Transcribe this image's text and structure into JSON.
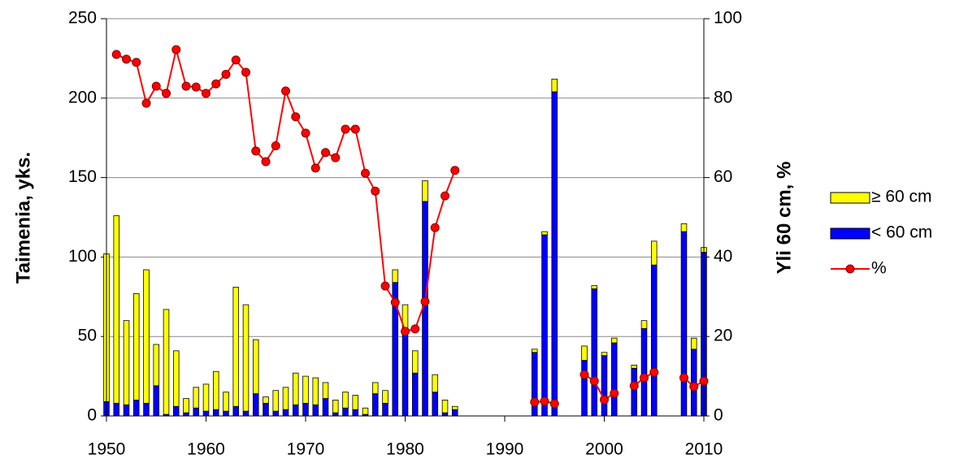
{
  "chart_data": {
    "type": "bar-line",
    "ylabel": "Taimenia, yks.",
    "y2label": "Yli 60 cm, %",
    "x": [
      1950,
      1951,
      1952,
      1953,
      1954,
      1955,
      1956,
      1957,
      1958,
      1959,
      1960,
      1961,
      1962,
      1963,
      1964,
      1965,
      1966,
      1967,
      1968,
      1969,
      1970,
      1971,
      1972,
      1973,
      1974,
      1975,
      1976,
      1977,
      1978,
      1979,
      1980,
      1981,
      1982,
      1983,
      1984,
      1985,
      1986,
      1987,
      1988,
      1989,
      1990,
      1991,
      1992,
      1993,
      1994,
      1995,
      1996,
      1997,
      1998,
      1999,
      2000,
      2001,
      2002,
      2003,
      2004,
      2005,
      2006,
      2007,
      2008,
      2009,
      2010
    ],
    "xlim": [
      1950,
      2010
    ],
    "xticks": [
      1950,
      1960,
      1970,
      1980,
      1990,
      2000,
      2010
    ],
    "ylim": [
      0,
      250
    ],
    "yticks": [
      0,
      50,
      100,
      150,
      200,
      250
    ],
    "y2lim": [
      0,
      100
    ],
    "y2ticks": [
      0,
      20,
      40,
      60,
      80,
      100
    ],
    "grid": true,
    "legend": "right",
    "series": [
      {
        "name": "< 60 cm",
        "type": "bar",
        "color": "#0000ff",
        "values": [
          9,
          8,
          7,
          10,
          8,
          19,
          1,
          6,
          2,
          5,
          3,
          4,
          3,
          6,
          3,
          14,
          8,
          3,
          4,
          7,
          8,
          7,
          11,
          2,
          5,
          4,
          1,
          14,
          8,
          84,
          55,
          27,
          135,
          15,
          2,
          4,
          null,
          null,
          null,
          null,
          null,
          null,
          null,
          40,
          114,
          204,
          null,
          null,
          35,
          80,
          38,
          46,
          null,
          30,
          55,
          95,
          null,
          null,
          116,
          42,
          103
        ]
      },
      {
        "name": "≥ 60 cm",
        "type": "bar",
        "color": "#ffff00",
        "values": [
          93,
          118,
          53,
          67,
          84,
          26,
          66,
          35,
          9,
          13,
          17,
          24,
          12,
          75,
          67,
          34,
          4,
          13,
          14,
          20,
          17,
          17,
          10,
          8,
          10,
          9,
          4,
          7,
          8,
          8,
          15,
          14,
          13,
          11,
          8,
          2,
          null,
          null,
          null,
          null,
          null,
          null,
          null,
          2,
          2,
          8,
          null,
          null,
          9,
          2,
          2,
          3,
          null,
          2,
          5,
          15,
          null,
          null,
          5,
          7,
          3
        ]
      },
      {
        "name": "%",
        "type": "line",
        "axis": "y2",
        "color": "#ff0000",
        "values": [
          null,
          91,
          89.8,
          89,
          78.7,
          83,
          81.2,
          92.2,
          83,
          82.8,
          81.2,
          83.6,
          86,
          89.6,
          86.5,
          66.7,
          64,
          68,
          81.8,
          75.3,
          71.2,
          62.4,
          66.3,
          65,
          72.2,
          72.2,
          61.1,
          56.6,
          32.7,
          28.6,
          21.3,
          21.9,
          28.8,
          47.4,
          55.4,
          61.8,
          null,
          null,
          null,
          null,
          null,
          null,
          null,
          3.5,
          3.7,
          3.1,
          null,
          null,
          10.4,
          8.8,
          4.1,
          5.7,
          null,
          7.6,
          9.6,
          11,
          null,
          null,
          9.6,
          7.4,
          8.8
        ]
      }
    ]
  }
}
